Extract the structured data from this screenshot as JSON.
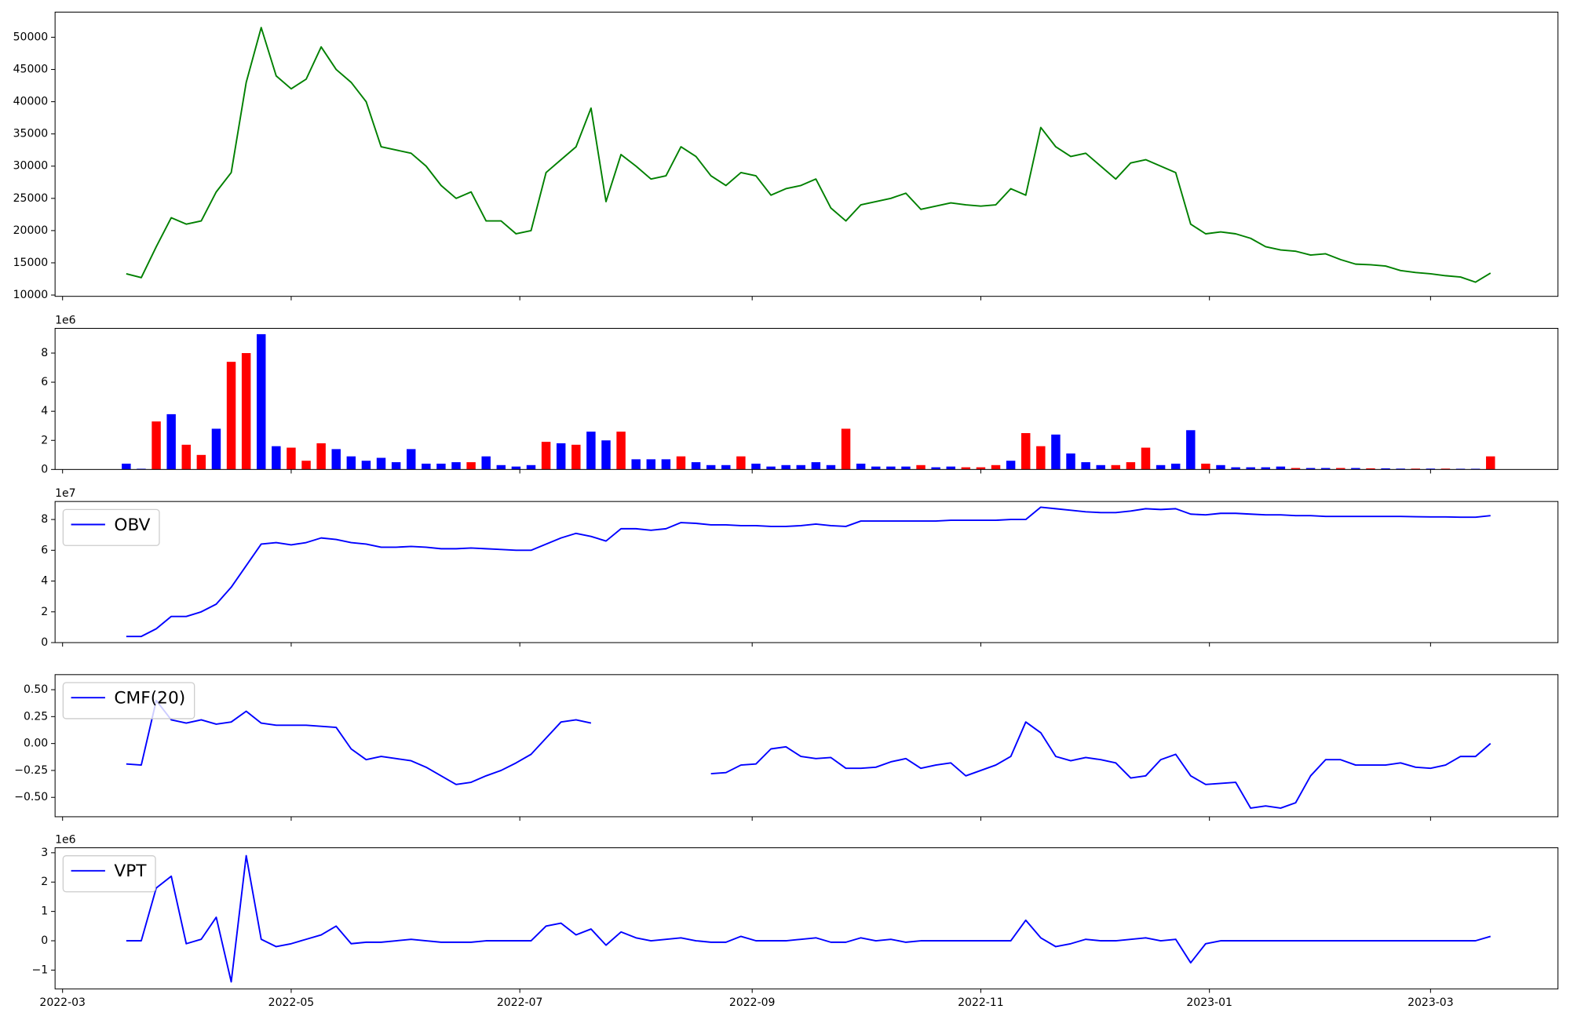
{
  "chart_data": [
    {
      "type": "line",
      "ylim": [
        9800,
        53900
      ],
      "yticks": [
        10000,
        15000,
        20000,
        25000,
        30000,
        35000,
        40000,
        45000,
        50000
      ],
      "series": [
        {
          "color": "green",
          "values": [
            13300,
            12700,
            17500,
            22000,
            21000,
            21500,
            26000,
            29000,
            43000,
            51500,
            44000,
            42000,
            43500,
            48500,
            45000,
            43000,
            40000,
            33000,
            32500,
            32000,
            30000,
            27000,
            25000,
            26000,
            21500,
            21500,
            19500,
            20000,
            29000,
            31000,
            33000,
            39000,
            24500,
            31800,
            30000,
            28000,
            28500,
            33000,
            31500,
            28500,
            27000,
            29000,
            28500,
            25500,
            26500,
            27000,
            28000,
            23500,
            21500,
            24000,
            24500,
            25000,
            25800,
            23300,
            23800,
            24300,
            24000,
            23800,
            24000,
            26500,
            25500,
            36000,
            33000,
            31500,
            32000,
            30000,
            28000,
            30500,
            31000,
            30000,
            29000,
            21000,
            19500,
            19800,
            19500,
            18800,
            17500,
            17000,
            16800,
            16200,
            16400,
            15500,
            14800,
            14700,
            14500,
            13800,
            13500,
            13300,
            13000,
            12800,
            12000,
            13400
          ]
        }
      ]
    },
    {
      "type": "bar",
      "offset_label": "1e6",
      "ylim": [
        0,
        9.7
      ],
      "yticks": [
        0,
        2,
        4,
        6,
        8
      ],
      "values": [
        0.4,
        0.05,
        3.3,
        3.8,
        1.7,
        1.0,
        2.8,
        7.4,
        8.0,
        9.3,
        1.6,
        1.5,
        0.6,
        1.8,
        1.4,
        0.9,
        0.6,
        0.8,
        0.5,
        1.4,
        0.4,
        0.4,
        0.5,
        0.5,
        0.9,
        0.3,
        0.2,
        0.3,
        1.9,
        1.8,
        1.7,
        2.6,
        2.0,
        2.6,
        0.7,
        0.7,
        0.7,
        0.9,
        0.5,
        0.3,
        0.3,
        0.9,
        0.4,
        0.2,
        0.3,
        0.3,
        0.5,
        0.3,
        2.8,
        0.4,
        0.2,
        0.2,
        0.2,
        0.3,
        0.15,
        0.2,
        0.15,
        0.15,
        0.3,
        0.6,
        2.5,
        1.6,
        2.4,
        1.1,
        0.5,
        0.3,
        0.3,
        0.5,
        1.5,
        0.3,
        0.4,
        2.7,
        0.4,
        0.3,
        0.15,
        0.15,
        0.15,
        0.2,
        0.1,
        0.1,
        0.1,
        0.1,
        0.1,
        0.08,
        0.08,
        0.06,
        0.06,
        0.06,
        0.06,
        0.05,
        0.05,
        0.9
      ],
      "colors": [
        "blue",
        "blue",
        "red",
        "blue",
        "red",
        "red",
        "blue",
        "red",
        "red",
        "blue",
        "blue",
        "red",
        "red",
        "red",
        "blue",
        "blue",
        "blue",
        "blue",
        "blue",
        "blue",
        "blue",
        "blue",
        "blue",
        "red",
        "blue",
        "blue",
        "blue",
        "blue",
        "red",
        "blue",
        "red",
        "blue",
        "blue",
        "red",
        "blue",
        "blue",
        "blue",
        "red",
        "blue",
        "blue",
        "blue",
        "red",
        "blue",
        "blue",
        "blue",
        "blue",
        "blue",
        "blue",
        "red",
        "blue",
        "blue",
        "blue",
        "blue",
        "red",
        "blue",
        "blue",
        "red",
        "red",
        "red",
        "blue",
        "red",
        "red",
        "blue",
        "blue",
        "blue",
        "blue",
        "red",
        "red",
        "red",
        "blue",
        "blue",
        "blue",
        "red",
        "blue",
        "blue",
        "blue",
        "blue",
        "blue",
        "red",
        "blue",
        "blue",
        "red",
        "blue",
        "red",
        "blue",
        "blue",
        "red",
        "blue",
        "red",
        "blue",
        "blue",
        "red"
      ]
    },
    {
      "type": "line",
      "offset_label": "1e7",
      "ylim": [
        0,
        9.17
      ],
      "yticks": [
        0,
        2,
        4,
        6,
        8
      ],
      "legend": "upper left",
      "series": [
        {
          "name": "OBV",
          "color": "blue",
          "values": [
            0.4,
            0.4,
            0.9,
            1.7,
            1.7,
            2.0,
            2.5,
            3.6,
            5.0,
            6.4,
            6.5,
            6.35,
            6.5,
            6.8,
            6.7,
            6.5,
            6.4,
            6.2,
            6.2,
            6.25,
            6.2,
            6.1,
            6.1,
            6.15,
            6.1,
            6.05,
            6.0,
            6.0,
            6.4,
            6.8,
            7.1,
            6.9,
            6.6,
            7.4,
            7.4,
            7.3,
            7.4,
            7.8,
            7.75,
            7.65,
            7.65,
            7.6,
            7.6,
            7.55,
            7.55,
            7.6,
            7.7,
            7.6,
            7.55,
            7.9,
            7.9,
            7.9,
            7.9,
            7.9,
            7.9,
            7.95,
            7.95,
            7.95,
            7.95,
            8.0,
            8.0,
            8.8,
            8.7,
            8.6,
            8.5,
            8.45,
            8.45,
            8.55,
            8.7,
            8.65,
            8.7,
            8.35,
            8.3,
            8.4,
            8.4,
            8.35,
            8.3,
            8.3,
            8.25,
            8.25,
            8.2,
            8.2,
            8.2,
            8.2,
            8.2,
            8.2,
            8.18,
            8.17,
            8.17,
            8.15,
            8.15,
            8.25
          ]
        }
      ]
    },
    {
      "type": "line",
      "ylim": [
        -0.68,
        0.64
      ],
      "yticks": [
        {
          "value": -0.5,
          "label": "−0.50"
        },
        {
          "value": -0.25,
          "label": "−0.25"
        },
        {
          "value": 0,
          "label": "0.00"
        },
        {
          "value": 0.25,
          "label": "0.25"
        },
        {
          "value": 0.5,
          "label": "0.50"
        }
      ],
      "legend": "upper left",
      "series": [
        {
          "name": "CMF(20)",
          "color": "blue",
          "values": [
            -0.19,
            -0.2,
            0.4,
            0.22,
            0.19,
            0.22,
            0.18,
            0.2,
            0.3,
            0.19,
            0.17,
            0.17,
            0.17,
            0.16,
            0.15,
            -0.05,
            -0.15,
            -0.12,
            -0.14,
            -0.16,
            -0.22,
            -0.3,
            -0.38,
            -0.36,
            -0.3,
            -0.25,
            -0.18,
            -0.1,
            0.05,
            0.2,
            0.22,
            0.19,
            null,
            null,
            null,
            null,
            null,
            null,
            null,
            -0.28,
            -0.27,
            -0.2,
            -0.19,
            -0.05,
            -0.03,
            -0.12,
            -0.14,
            -0.13,
            -0.23,
            -0.23,
            -0.22,
            -0.17,
            -0.14,
            -0.23,
            -0.2,
            -0.18,
            -0.3,
            -0.25,
            -0.2,
            -0.12,
            0.2,
            0.1,
            -0.12,
            -0.16,
            -0.13,
            -0.15,
            -0.18,
            -0.32,
            -0.3,
            -0.15,
            -0.1,
            -0.3,
            -0.38,
            -0.37,
            -0.36,
            -0.6,
            -0.58,
            -0.6,
            -0.55,
            -0.3,
            -0.15,
            -0.15,
            -0.2,
            -0.2,
            -0.2,
            -0.18,
            -0.22,
            -0.23,
            -0.2,
            -0.12,
            -0.12,
            0.0
          ]
        }
      ]
    },
    {
      "type": "line",
      "offset_label": "1e6",
      "ylim": [
        -1.64,
        3.17
      ],
      "yticks": [
        {
          "value": -1,
          "label": "−1"
        },
        0,
        1,
        2,
        3
      ],
      "legend": "upper left",
      "xlim": [
        19050,
        19451
      ],
      "xticks": [
        {
          "value": 19052,
          "label": "2022-03"
        },
        {
          "value": 19113,
          "label": "2022-05"
        },
        {
          "value": 19174,
          "label": "2022-07"
        },
        {
          "value": 19236,
          "label": "2022-09"
        },
        {
          "value": 19297,
          "label": "2022-11"
        },
        {
          "value": 19358,
          "label": "2023-01"
        },
        {
          "value": 19417,
          "label": "2023-03"
        }
      ],
      "x": [
        19069,
        19073,
        19077,
        19081,
        19085,
        19089,
        19093,
        19097,
        19101,
        19105,
        19109,
        19113,
        19117,
        19121,
        19125,
        19129,
        19133,
        19137,
        19141,
        19145,
        19149,
        19153,
        19157,
        19161,
        19165,
        19169,
        19173,
        19177,
        19181,
        19185,
        19189,
        19193,
        19197,
        19201,
        19205,
        19209,
        19213,
        19217,
        19221,
        19225,
        19229,
        19233,
        19237,
        19241,
        19245,
        19249,
        19253,
        19257,
        19261,
        19265,
        19269,
        19273,
        19277,
        19281,
        19285,
        19289,
        19293,
        19297,
        19301,
        19305,
        19309,
        19313,
        19317,
        19321,
        19325,
        19329,
        19333,
        19337,
        19341,
        19345,
        19349,
        19353,
        19357,
        19361,
        19365,
        19369,
        19373,
        19377,
        19381,
        19385,
        19389,
        19393,
        19397,
        19401,
        19405,
        19409,
        19413,
        19417,
        19421,
        19425,
        19429,
        19433
      ],
      "series": [
        {
          "name": "VPT",
          "color": "blue",
          "values": [
            0,
            0,
            1.8,
            2.2,
            -0.1,
            0.05,
            0.8,
            -1.4,
            2.9,
            0.05,
            -0.2,
            -0.1,
            0.05,
            0.2,
            0.5,
            -0.1,
            -0.05,
            -0.05,
            0,
            0.05,
            0,
            -0.05,
            -0.05,
            -0.05,
            0,
            0,
            0,
            0,
            0.5,
            0.6,
            0.2,
            0.4,
            -0.15,
            0.3,
            0.1,
            0,
            0.05,
            0.1,
            0,
            -0.05,
            -0.05,
            0.15,
            0,
            0,
            0,
            0.05,
            0.1,
            -0.05,
            -0.05,
            0.1,
            0,
            0.05,
            -0.05,
            0,
            0,
            0,
            0,
            0,
            0,
            0,
            0.7,
            0.1,
            -0.2,
            -0.1,
            0.05,
            0,
            0,
            0.05,
            0.1,
            0,
            0.05,
            -0.75,
            -0.1,
            0,
            0,
            0,
            0,
            0,
            0,
            0,
            0,
            0,
            0,
            0,
            0,
            0,
            0,
            0,
            0,
            0,
            0,
            0.15
          ]
        }
      ]
    }
  ]
}
